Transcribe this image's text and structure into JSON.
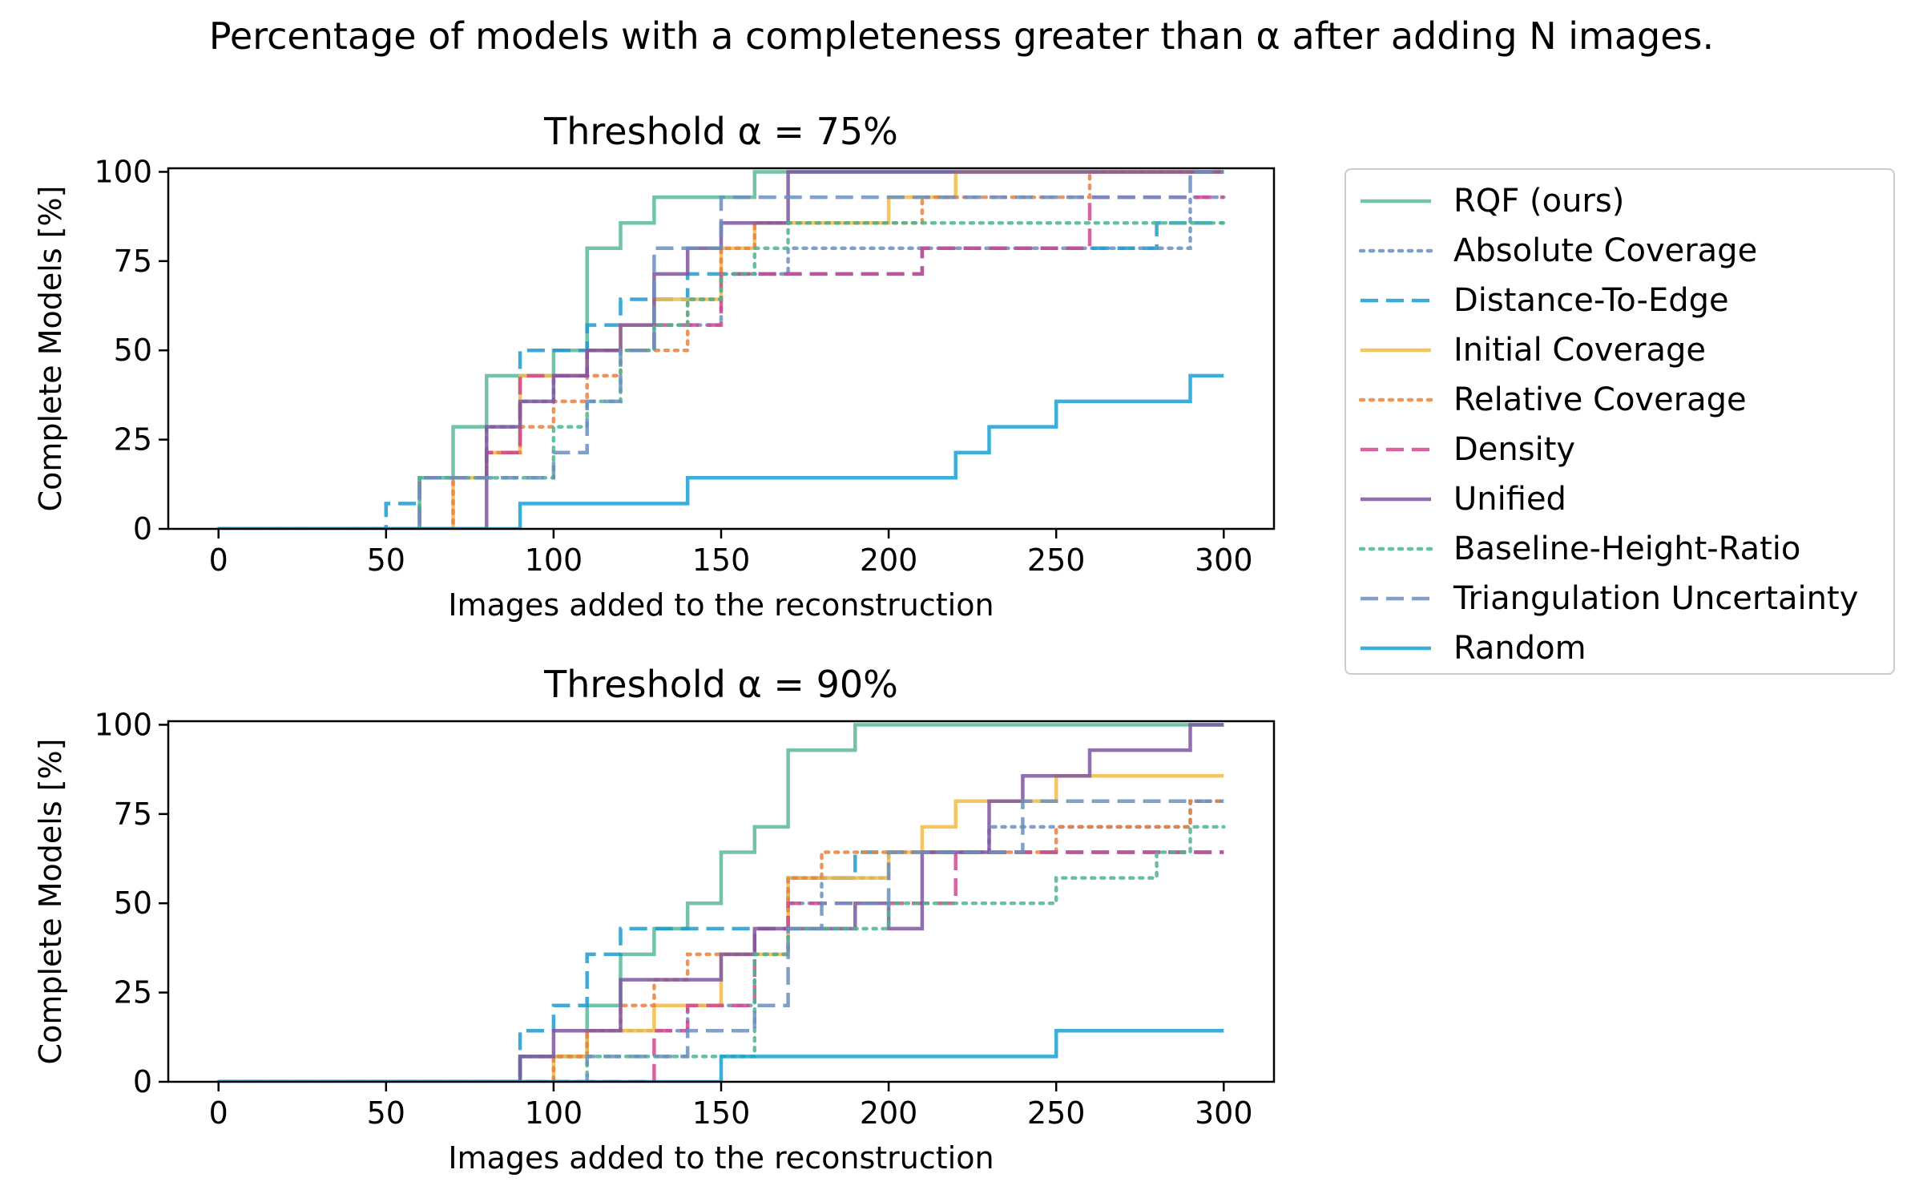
{
  "figure": {
    "title": "Percentage of models with a completeness greater than α after adding N images."
  },
  "series_styles": [
    {
      "name": "RQF (ours)",
      "color": "#5bb896",
      "dash": "solid"
    },
    {
      "name": "Absolute Coverage",
      "color": "#6a8fbf",
      "dash": "dotted"
    },
    {
      "name": "Distance-To-Edge",
      "color": "#1f9bcf",
      "dash": "dashed"
    },
    {
      "name": "Initial Coverage",
      "color": "#f2bb45",
      "dash": "solid"
    },
    {
      "name": "Relative Coverage",
      "color": "#ea8040",
      "dash": "dotted"
    },
    {
      "name": "Density",
      "color": "#d2478f",
      "dash": "dashed"
    },
    {
      "name": "Unified",
      "color": "#7e56a0",
      "dash": "solid"
    },
    {
      "name": "Baseline-Height-Ratio",
      "color": "#4fb58e",
      "dash": "dotted"
    },
    {
      "name": "Triangulation Uncertainty",
      "color": "#6a8fbf",
      "dash": "dashed"
    },
    {
      "name": "Random",
      "color": "#1aa0d3",
      "dash": "solid"
    }
  ],
  "chart_data": [
    {
      "type": "line",
      "title": "Threshold α = 75%",
      "xlabel": "Images added to the reconstruction",
      "ylabel": "Complete Models [%]",
      "xlim": [
        -15,
        315
      ],
      "ylim": [
        0,
        101
      ],
      "xticks": [
        0,
        50,
        100,
        150,
        200,
        250,
        300
      ],
      "yticks": [
        0,
        25,
        50,
        75,
        100
      ],
      "grid": false,
      "legend_placement": "right",
      "series": [
        {
          "name": "RQF (ours)",
          "x": [
            0,
            60,
            70,
            80,
            100,
            110,
            120,
            130,
            160,
            300
          ],
          "y": [
            0,
            14.3,
            28.6,
            42.9,
            50,
            78.6,
            85.7,
            92.9,
            100,
            100
          ]
        },
        {
          "name": "Absolute Coverage",
          "x": [
            0,
            60,
            80,
            90,
            100,
            110,
            130,
            150,
            170,
            290,
            300
          ],
          "y": [
            0,
            14.3,
            28.6,
            35.7,
            42.9,
            50,
            57.1,
            71.4,
            78.6,
            92.9,
            92.9
          ]
        },
        {
          "name": "Distance-To-Edge",
          "x": [
            0,
            50,
            60,
            80,
            90,
            110,
            120,
            140,
            150,
            200,
            210,
            280,
            300
          ],
          "y": [
            0,
            7.1,
            14.3,
            21.4,
            50,
            57.1,
            64.3,
            71.4,
            71.4,
            71.4,
            78.6,
            85.7,
            85.7
          ]
        },
        {
          "name": "Initial Coverage",
          "x": [
            0,
            70,
            80,
            90,
            110,
            120,
            130,
            150,
            160,
            200,
            220,
            300
          ],
          "y": [
            0,
            14.3,
            21.4,
            42.9,
            50,
            57.1,
            64.3,
            78.6,
            85.7,
            92.9,
            100,
            100
          ]
        },
        {
          "name": "Relative Coverage",
          "x": [
            0,
            70,
            80,
            90,
            100,
            110,
            120,
            140,
            150,
            160,
            210,
            260,
            300
          ],
          "y": [
            0,
            14.3,
            21.4,
            28.6,
            35.7,
            42.9,
            50,
            64.3,
            78.6,
            85.7,
            92.9,
            100,
            100
          ]
        },
        {
          "name": "Density",
          "x": [
            0,
            60,
            80,
            90,
            110,
            130,
            150,
            200,
            210,
            260,
            300
          ],
          "y": [
            0,
            14.3,
            21.4,
            42.9,
            50,
            57.1,
            71.4,
            71.4,
            78.6,
            92.9,
            92.9
          ]
        },
        {
          "name": "Unified",
          "x": [
            0,
            80,
            90,
            100,
            110,
            120,
            130,
            140,
            150,
            170,
            300
          ],
          "y": [
            0,
            28.6,
            35.7,
            42.9,
            50,
            57.1,
            71.4,
            78.6,
            85.7,
            100,
            100
          ]
        },
        {
          "name": "Baseline-Height-Ratio",
          "x": [
            0,
            60,
            70,
            100,
            110,
            120,
            130,
            140,
            150,
            160,
            170,
            300
          ],
          "y": [
            0,
            14.3,
            14.3,
            28.6,
            35.7,
            50,
            57.1,
            64.3,
            71.4,
            78.6,
            85.7,
            85.7
          ]
        },
        {
          "name": "Triangulation Uncertainty",
          "x": [
            0,
            60,
            90,
            100,
            110,
            120,
            130,
            150,
            290,
            300
          ],
          "y": [
            0,
            14.3,
            14.3,
            21.4,
            35.7,
            50,
            78.6,
            92.9,
            100,
            100
          ]
        },
        {
          "name": "Random",
          "x": [
            0,
            90,
            140,
            220,
            230,
            250,
            290,
            300
          ],
          "y": [
            0,
            7.1,
            14.3,
            21.4,
            28.6,
            35.7,
            42.9,
            42.9
          ]
        }
      ]
    },
    {
      "type": "line",
      "title": "Threshold α = 90%",
      "xlabel": "Images added to the reconstruction",
      "ylabel": "Complete Models [%]",
      "xlim": [
        -15,
        315
      ],
      "ylim": [
        0,
        101
      ],
      "xticks": [
        0,
        50,
        100,
        150,
        200,
        250,
        300
      ],
      "yticks": [
        0,
        25,
        50,
        75,
        100
      ],
      "grid": false,
      "series": [
        {
          "name": "RQF (ours)",
          "x": [
            0,
            90,
            110,
            120,
            130,
            140,
            150,
            160,
            170,
            190,
            300
          ],
          "y": [
            0,
            7.1,
            21.4,
            35.7,
            42.9,
            50,
            64.3,
            71.4,
            92.9,
            100,
            100
          ]
        },
        {
          "name": "Absolute Coverage",
          "x": [
            0,
            90,
            110,
            140,
            160,
            170,
            180,
            200,
            230,
            240,
            290,
            300
          ],
          "y": [
            0,
            7.1,
            14.3,
            21.4,
            35.7,
            50,
            57.1,
            64.3,
            71.4,
            71.4,
            78.6,
            78.6
          ]
        },
        {
          "name": "Distance-To-Edge",
          "x": [
            0,
            90,
            100,
            110,
            120,
            150,
            170,
            180,
            190,
            300
          ],
          "y": [
            0,
            14.3,
            21.4,
            35.7,
            42.9,
            42.9,
            57.1,
            57.1,
            64.3,
            64.3
          ]
        },
        {
          "name": "Initial Coverage",
          "x": [
            0,
            100,
            110,
            130,
            150,
            170,
            200,
            210,
            220,
            240,
            250,
            290,
            300
          ],
          "y": [
            0,
            7.1,
            14.3,
            21.4,
            35.7,
            57.1,
            64.3,
            71.4,
            78.6,
            78.6,
            85.7,
            85.7,
            85.7
          ]
        },
        {
          "name": "Relative Coverage",
          "x": [
            0,
            100,
            110,
            120,
            130,
            140,
            170,
            180,
            190,
            250,
            290,
            300
          ],
          "y": [
            0,
            7.1,
            14.3,
            21.4,
            28.6,
            35.7,
            57.1,
            64.3,
            64.3,
            71.4,
            78.6,
            78.6
          ]
        },
        {
          "name": "Density",
          "x": [
            0,
            130,
            140,
            160,
            170,
            190,
            220,
            230,
            300
          ],
          "y": [
            0,
            14.3,
            21.4,
            42.9,
            50,
            50,
            64.3,
            64.3,
            64.3
          ]
        },
        {
          "name": "Unified",
          "x": [
            0,
            90,
            100,
            120,
            150,
            160,
            190,
            200,
            210,
            230,
            240,
            260,
            290,
            300
          ],
          "y": [
            0,
            7.1,
            14.3,
            28.6,
            35.7,
            42.9,
            50,
            42.9,
            64.3,
            78.6,
            85.7,
            92.9,
            100,
            100
          ]
        },
        {
          "name": "Baseline-Height-Ratio",
          "x": [
            0,
            110,
            130,
            160,
            170,
            200,
            250,
            280,
            290,
            300
          ],
          "y": [
            0,
            7.1,
            7.1,
            35.7,
            42.9,
            50,
            57.1,
            64.3,
            71.4,
            71.4
          ]
        },
        {
          "name": "Triangulation Uncertainty",
          "x": [
            0,
            110,
            140,
            160,
            170,
            180,
            200,
            240,
            300
          ],
          "y": [
            0,
            7.1,
            14.3,
            21.4,
            42.9,
            50,
            64.3,
            78.6,
            78.6
          ]
        },
        {
          "name": "Random",
          "x": [
            0,
            150,
            250,
            300
          ],
          "y": [
            0,
            7.1,
            14.3,
            14.3
          ]
        }
      ]
    }
  ]
}
